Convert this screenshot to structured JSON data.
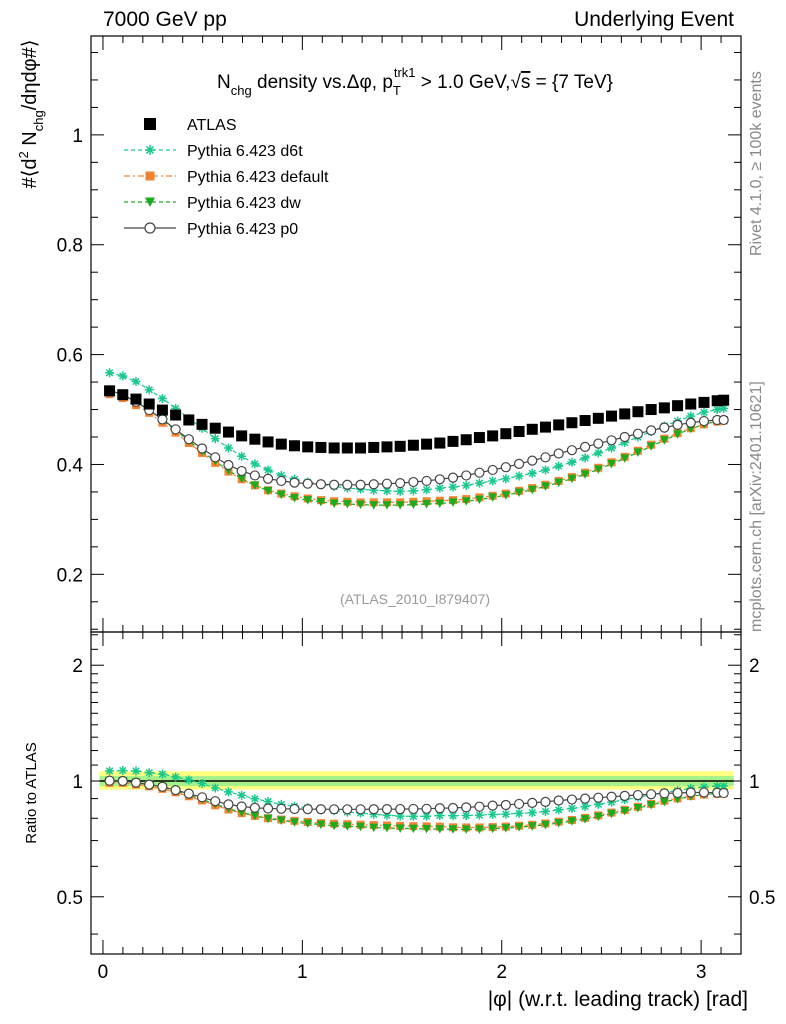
{
  "header": {
    "left": "7000 GeV pp",
    "right": "Underlying Event"
  },
  "side_labels": {
    "rivet": "Rivet 4.1.0, ≥ 100k events",
    "mcplots": "mcplots.cern.ch [arXiv:2401.10621]"
  },
  "chart_data": {
    "type": "scatter",
    "title": "N_chg density vs. Δφ, p_T^trk1 > 1.0 GeV, √s = {7 TeV}",
    "title_parts": {
      "a": "N",
      "a_sub": "chg",
      "b": " density vs.Δφ, p",
      "b_sub": "T",
      "b_sup": "trk1",
      "c": " > 1.0 GeV,",
      "sqrt": "√",
      "s": "s",
      "d": " = {7 TeV}"
    },
    "ylabel": "#⟨d² N_chg/dηdφ#⟩",
    "ylabel_parts": {
      "a": "#⟨d",
      "sup": "2",
      "b": " N",
      "sub": "chg",
      "c": "/dηdφ#⟩"
    },
    "xlabel": "|φ| (w.r.t. leading track) [rad]",
    "ratio_ylabel": "Ratio to ATLAS",
    "watermark": "(ATLAS_2010_I879407)",
    "xlim": [
      -0.06,
      3.2
    ],
    "ylim": [
      0.095,
      1.18
    ],
    "ratio_ylim": [
      0.355,
      2.44
    ],
    "yticks": [
      0.2,
      0.4,
      0.6,
      0.8,
      1.0
    ],
    "ytick_labels": [
      "0.2",
      "0.4",
      "0.6",
      "0.8",
      "1"
    ],
    "xticks": [
      0,
      1,
      2,
      3
    ],
    "xtick_labels": [
      "0",
      "1",
      "2",
      "3"
    ],
    "ratio_ticks": [
      0.5,
      1,
      2
    ],
    "ratio_tick_labels": [
      "0.5",
      "1",
      "2"
    ],
    "band": {
      "inner": [
        0.97,
        1.03
      ],
      "outer": [
        0.95,
        1.06
      ],
      "inner_color": "#a6f28a",
      "outer_color": "#ffff80"
    },
    "x": [
      0.0331,
      0.0994,
      0.1656,
      0.2319,
      0.2981,
      0.3644,
      0.4306,
      0.4969,
      0.5631,
      0.6294,
      0.6956,
      0.7619,
      0.8281,
      0.8944,
      0.9606,
      1.0269,
      1.0931,
      1.1594,
      1.2256,
      1.2919,
      1.3581,
      1.4244,
      1.4906,
      1.5569,
      1.6231,
      1.6894,
      1.7556,
      1.8219,
      1.8881,
      1.9544,
      2.0206,
      2.0869,
      2.1531,
      2.2194,
      2.2856,
      2.3519,
      2.4181,
      2.4844,
      2.5506,
      2.6169,
      2.6831,
      2.7494,
      2.8156,
      2.8819,
      2.9481,
      3.0144,
      3.0806,
      3.1131
    ],
    "series": [
      {
        "name": "ATLAS",
        "color": "#000000",
        "marker": "square",
        "line": "none",
        "values": [
          0.534,
          0.527,
          0.519,
          0.51,
          0.499,
          0.49,
          0.481,
          0.473,
          0.466,
          0.459,
          0.452,
          0.446,
          0.441,
          0.437,
          0.434,
          0.432,
          0.431,
          0.43,
          0.43,
          0.43,
          0.431,
          0.432,
          0.433,
          0.435,
          0.437,
          0.439,
          0.442,
          0.445,
          0.449,
          0.452,
          0.456,
          0.46,
          0.464,
          0.468,
          0.472,
          0.476,
          0.48,
          0.484,
          0.488,
          0.492,
          0.496,
          0.5,
          0.503,
          0.507,
          0.51,
          0.513,
          0.516,
          0.517
        ]
      },
      {
        "name": "Pythia 6.423 d6t",
        "color": "#19c98a",
        "marker": "star",
        "line": "dashed",
        "values": [
          0.567,
          0.561,
          0.551,
          0.536,
          0.52,
          0.502,
          0.484,
          0.466,
          0.447,
          0.43,
          0.415,
          0.401,
          0.39,
          0.38,
          0.373,
          0.368,
          0.364,
          0.36,
          0.357,
          0.355,
          0.353,
          0.352,
          0.351,
          0.352,
          0.354,
          0.357,
          0.359,
          0.362,
          0.366,
          0.37,
          0.374,
          0.379,
          0.384,
          0.39,
          0.397,
          0.404,
          0.412,
          0.421,
          0.43,
          0.44,
          0.45,
          0.46,
          0.47,
          0.479,
          0.488,
          0.495,
          0.5,
          0.502
        ]
      },
      {
        "name": "Pythia 6.423 default",
        "color": "#f58231",
        "marker": "square",
        "line": "dashdot",
        "values": [
          0.528,
          0.521,
          0.508,
          0.494,
          0.476,
          0.458,
          0.439,
          0.421,
          0.403,
          0.387,
          0.373,
          0.362,
          0.353,
          0.347,
          0.342,
          0.338,
          0.335,
          0.333,
          0.332,
          0.331,
          0.331,
          0.331,
          0.331,
          0.332,
          0.333,
          0.334,
          0.335,
          0.337,
          0.34,
          0.343,
          0.347,
          0.352,
          0.357,
          0.363,
          0.37,
          0.377,
          0.385,
          0.394,
          0.404,
          0.414,
          0.425,
          0.436,
          0.447,
          0.457,
          0.466,
          0.473,
          0.478,
          0.48
        ]
      },
      {
        "name": "Pythia 6.423 dw",
        "color": "#1dab1d",
        "marker": "triangle-down",
        "line": "dashed",
        "values": [
          0.535,
          0.527,
          0.514,
          0.499,
          0.481,
          0.462,
          0.443,
          0.424,
          0.406,
          0.389,
          0.374,
          0.362,
          0.352,
          0.345,
          0.339,
          0.335,
          0.332,
          0.329,
          0.328,
          0.327,
          0.326,
          0.326,
          0.326,
          0.327,
          0.328,
          0.329,
          0.331,
          0.333,
          0.336,
          0.34,
          0.344,
          0.349,
          0.354,
          0.36,
          0.367,
          0.374,
          0.382,
          0.391,
          0.401,
          0.411,
          0.422,
          0.433,
          0.444,
          0.455,
          0.465,
          0.473,
          0.479,
          0.481
        ]
      },
      {
        "name": "Pythia 6.423 p0",
        "color": "#444444",
        "marker": "circle-open",
        "line": "solid",
        "values": [
          0.535,
          0.527,
          0.514,
          0.499,
          0.482,
          0.464,
          0.446,
          0.429,
          0.413,
          0.399,
          0.388,
          0.38,
          0.374,
          0.37,
          0.367,
          0.365,
          0.364,
          0.363,
          0.363,
          0.363,
          0.364,
          0.365,
          0.366,
          0.368,
          0.37,
          0.373,
          0.376,
          0.38,
          0.385,
          0.39,
          0.395,
          0.401,
          0.407,
          0.413,
          0.42,
          0.426,
          0.432,
          0.438,
          0.444,
          0.45,
          0.456,
          0.462,
          0.467,
          0.472,
          0.476,
          0.479,
          0.481,
          0.481
        ]
      }
    ]
  }
}
